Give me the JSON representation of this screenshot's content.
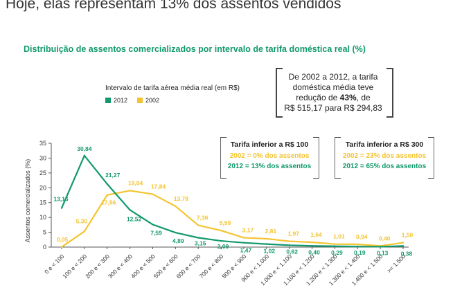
{
  "headline": "Hoje, elas representam 13% dos assentos vendidos",
  "chart_data": {
    "type": "line",
    "title": "Distribuição de assentos comercializados por intervalo de tarifa doméstica real (%)",
    "legend_title": "Intervalo de tarifa aérea média real (em R$)",
    "ylabel": "Assentos comercializados (%)",
    "xlabel": "",
    "ylim": [
      0,
      35
    ],
    "yticks": [
      0,
      5,
      10,
      15,
      20,
      25,
      30,
      35
    ],
    "categories": [
      "0 e < 100",
      "100 e < 200",
      "200 e < 300",
      "300 e < 400",
      "400 e < 500",
      "500 e < 600",
      "600 e < 700",
      "700 e < 800",
      "800 e < 900",
      "900 e < 1.000",
      "1.000 e < 1.100",
      "1.100 e < 1.200",
      "1.200 e < 1.300",
      "1.300 e < 1.400",
      "1.400 e < 1.500",
      ">= 1.500"
    ],
    "series": [
      {
        "name": "2012",
        "color": "#12996e",
        "values": [
          13.16,
          30.84,
          21.27,
          12.52,
          7.59,
          4.89,
          3.15,
          2.09,
          1.47,
          1.02,
          0.62,
          0.4,
          0.29,
          0.19,
          0.13,
          0.38
        ],
        "labels": [
          "13,16",
          "30,84",
          "21,27",
          "12,52",
          "7,59",
          "4,89",
          "3,15",
          "2,09",
          "1,47",
          "1,02",
          "0,62",
          "0,40",
          "0,29",
          "0,19",
          "0,13",
          "0,38"
        ]
      },
      {
        "name": "2002",
        "color": "#f4c430",
        "values": [
          0.05,
          5.3,
          17.56,
          19.04,
          17.84,
          13.78,
          7.36,
          5.59,
          3.17,
          2.81,
          1.97,
          1.64,
          1.01,
          0.94,
          0.4,
          1.5
        ],
        "labels": [
          "0,05",
          "5,30",
          "17,56",
          "19,04",
          "17,84",
          "13,78",
          "7,36",
          "5,59",
          "3,17",
          "2,81",
          "1,97",
          "1,64",
          "1,01",
          "0,94",
          "0,40",
          "1,50"
        ]
      }
    ],
    "grid": false,
    "legend_position": "top-left"
  },
  "callouts": {
    "main_line1": "De 2002 a 2012, a tarifa",
    "main_line2": "doméstica média teve",
    "main_line3_pre": "redução de ",
    "main_line3_bold": "43%",
    "main_line3_post": ", de",
    "main_line4": "R$ 515,17 para R$ 294,83",
    "box1_title": "Tarifa inferior a R$ 100",
    "box1_line1": "2002 = 0% dos assentos",
    "box1_line2": "2012 = 13% dos assentos",
    "box2_title": "Tarifa inferior a R$ 300",
    "box2_line1": "2002 = 23% dos assentos",
    "box2_line2": "2012 = 65% dos assentos"
  }
}
